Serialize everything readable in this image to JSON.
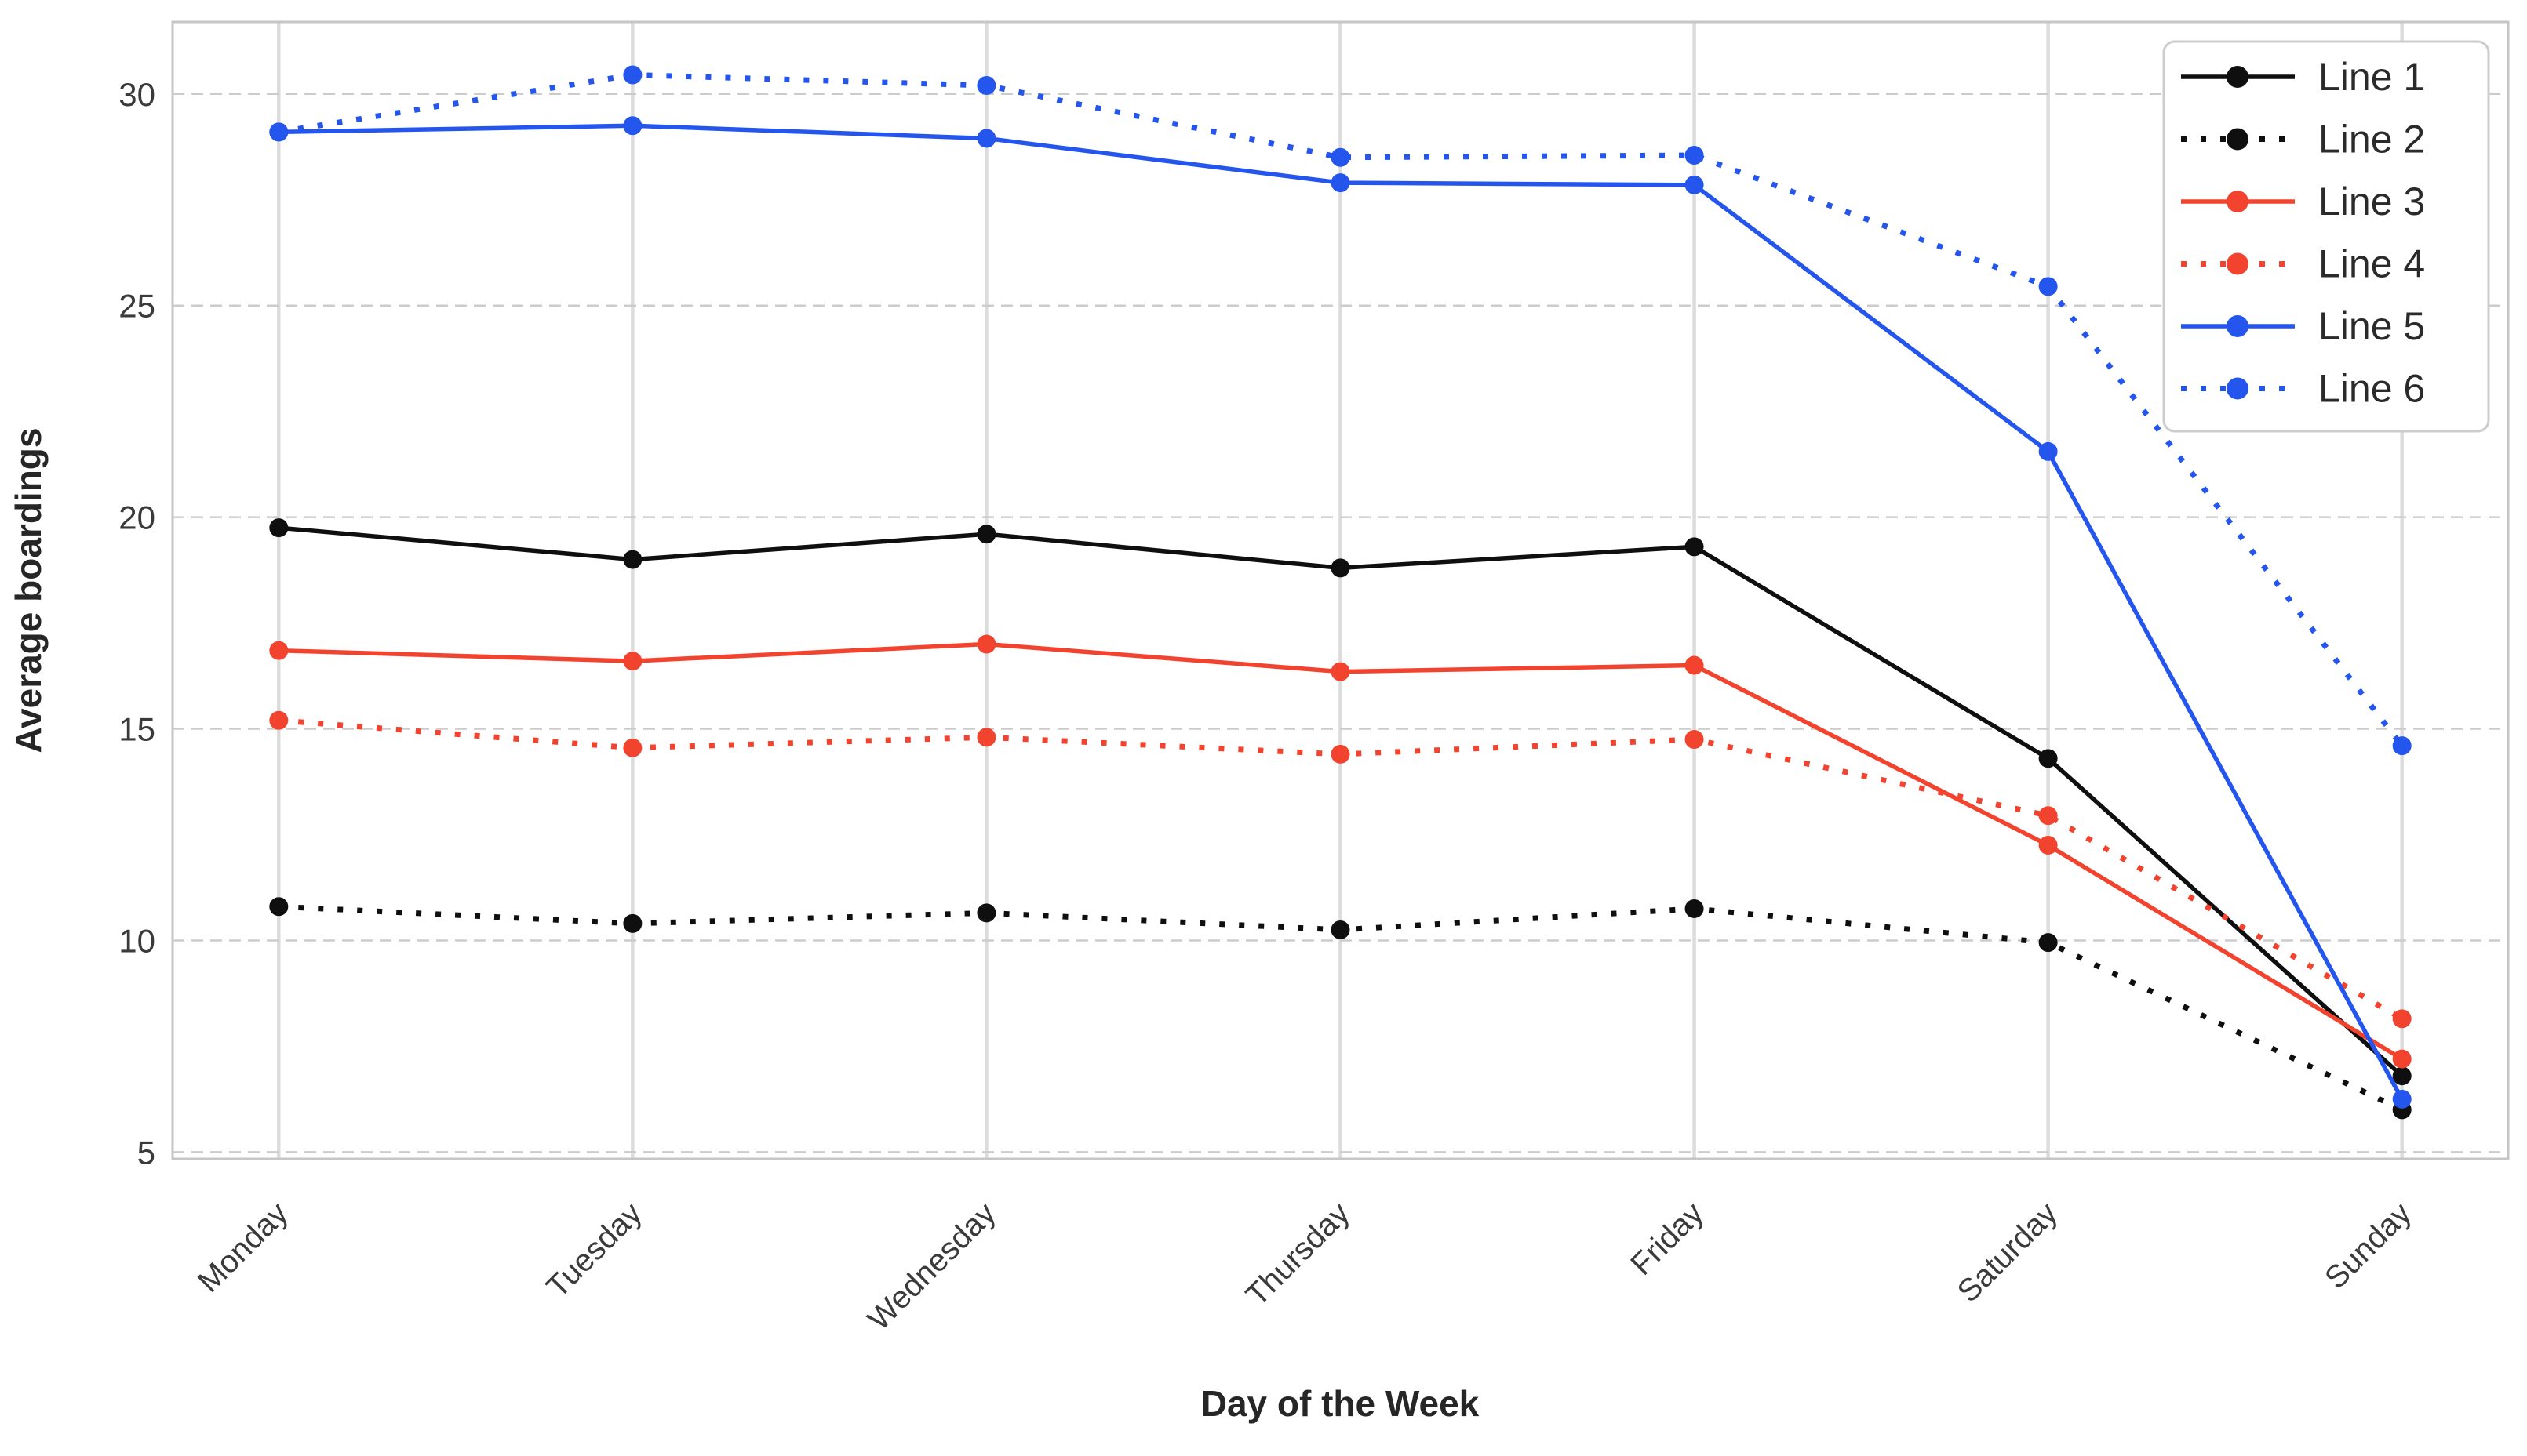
{
  "figure": {
    "background": "#ffffff",
    "frame_color": "#c6c6c6",
    "hgrid_color": "#cccccc",
    "vgrid_color": "#dcdcdc",
    "tick_label_color": "#3a3a3a",
    "axis_title_color": "#262626",
    "legend_text_color": "#2a2a2a",
    "legend_border_color": "#cccccc"
  },
  "chart_data": {
    "type": "line",
    "title": "",
    "xlabel": "Day of the Week",
    "ylabel": "Average boardings",
    "categories": [
      "Monday",
      "Tuesday",
      "Wednesday",
      "Thursday",
      "Friday",
      "Saturday",
      "Sunday"
    ],
    "yticks": [
      5,
      10,
      15,
      20,
      25,
      30
    ],
    "ylim": [
      4.84,
      31.7
    ],
    "grid": {
      "horizontal": "dashed",
      "vertical": "solid"
    },
    "legend_position": "top-right",
    "series": [
      {
        "name": "Line 1",
        "color": "#0f0f0f",
        "style": "solid",
        "marker": "circle",
        "values": [
          19.75,
          19.0,
          19.6,
          18.8,
          19.3,
          14.3,
          6.8
        ]
      },
      {
        "name": "Line 2",
        "color": "#0f0f0f",
        "style": "dotted",
        "marker": "circle",
        "values": [
          10.8,
          10.4,
          10.65,
          10.25,
          10.75,
          9.95,
          6.0
        ]
      },
      {
        "name": "Line 3",
        "color": "#f2432f",
        "style": "solid",
        "marker": "circle",
        "values": [
          16.85,
          16.6,
          17.0,
          16.35,
          16.5,
          12.25,
          7.2
        ]
      },
      {
        "name": "Line 4",
        "color": "#f2432f",
        "style": "dotted",
        "marker": "circle",
        "values": [
          15.2,
          14.55,
          14.8,
          14.4,
          14.75,
          12.95,
          8.15
        ]
      },
      {
        "name": "Line 5",
        "color": "#2455ec",
        "style": "solid",
        "marker": "circle",
        "values": [
          29.1,
          29.25,
          28.95,
          27.9,
          27.85,
          21.55,
          6.25
        ]
      },
      {
        "name": "Line 6",
        "color": "#2455ec",
        "style": "dotted",
        "marker": "circle",
        "values": [
          29.1,
          30.45,
          30.2,
          28.5,
          28.55,
          25.45,
          14.6
        ]
      }
    ]
  }
}
